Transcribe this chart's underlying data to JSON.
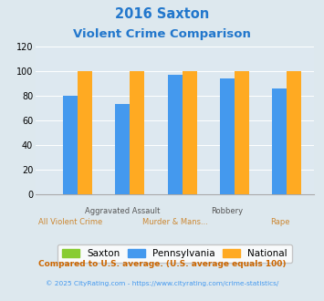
{
  "title_line1": "2016 Saxton",
  "title_line2": "Violent Crime Comparison",
  "title_color": "#2277cc",
  "categories": [
    "All Violent Crime",
    "Aggravated Assault",
    "Murder & Mans...",
    "Robbery",
    "Rape"
  ],
  "saxton": [
    0,
    0,
    0,
    0,
    0
  ],
  "pennsylvania": [
    80,
    73,
    97,
    94,
    86
  ],
  "national": [
    100,
    100,
    100,
    100,
    100
  ],
  "saxton_color": "#88cc33",
  "pennsylvania_color": "#4499ee",
  "national_color": "#ffaa22",
  "ylim": [
    0,
    120
  ],
  "yticks": [
    0,
    20,
    40,
    60,
    80,
    100,
    120
  ],
  "fig_bg": "#dde8ee",
  "plot_bg": "#dde8f0",
  "legend_labels": [
    "Saxton",
    "Pennsylvania",
    "National"
  ],
  "footnote1": "Compared to U.S. average. (U.S. average equals 100)",
  "footnote2": "© 2025 CityRating.com - https://www.cityrating.com/crime-statistics/",
  "footnote1_color": "#cc6600",
  "footnote2_color": "#4499ee",
  "xlabel_top_color": "#555555",
  "xlabel_bot_color": "#cc8833",
  "xlabel_top": [
    "",
    "Aggravated Assault",
    "",
    "Robbery",
    ""
  ],
  "xlabel_bot": [
    "All Violent Crime",
    "",
    "Murder & Mans...",
    "",
    "Rape"
  ]
}
